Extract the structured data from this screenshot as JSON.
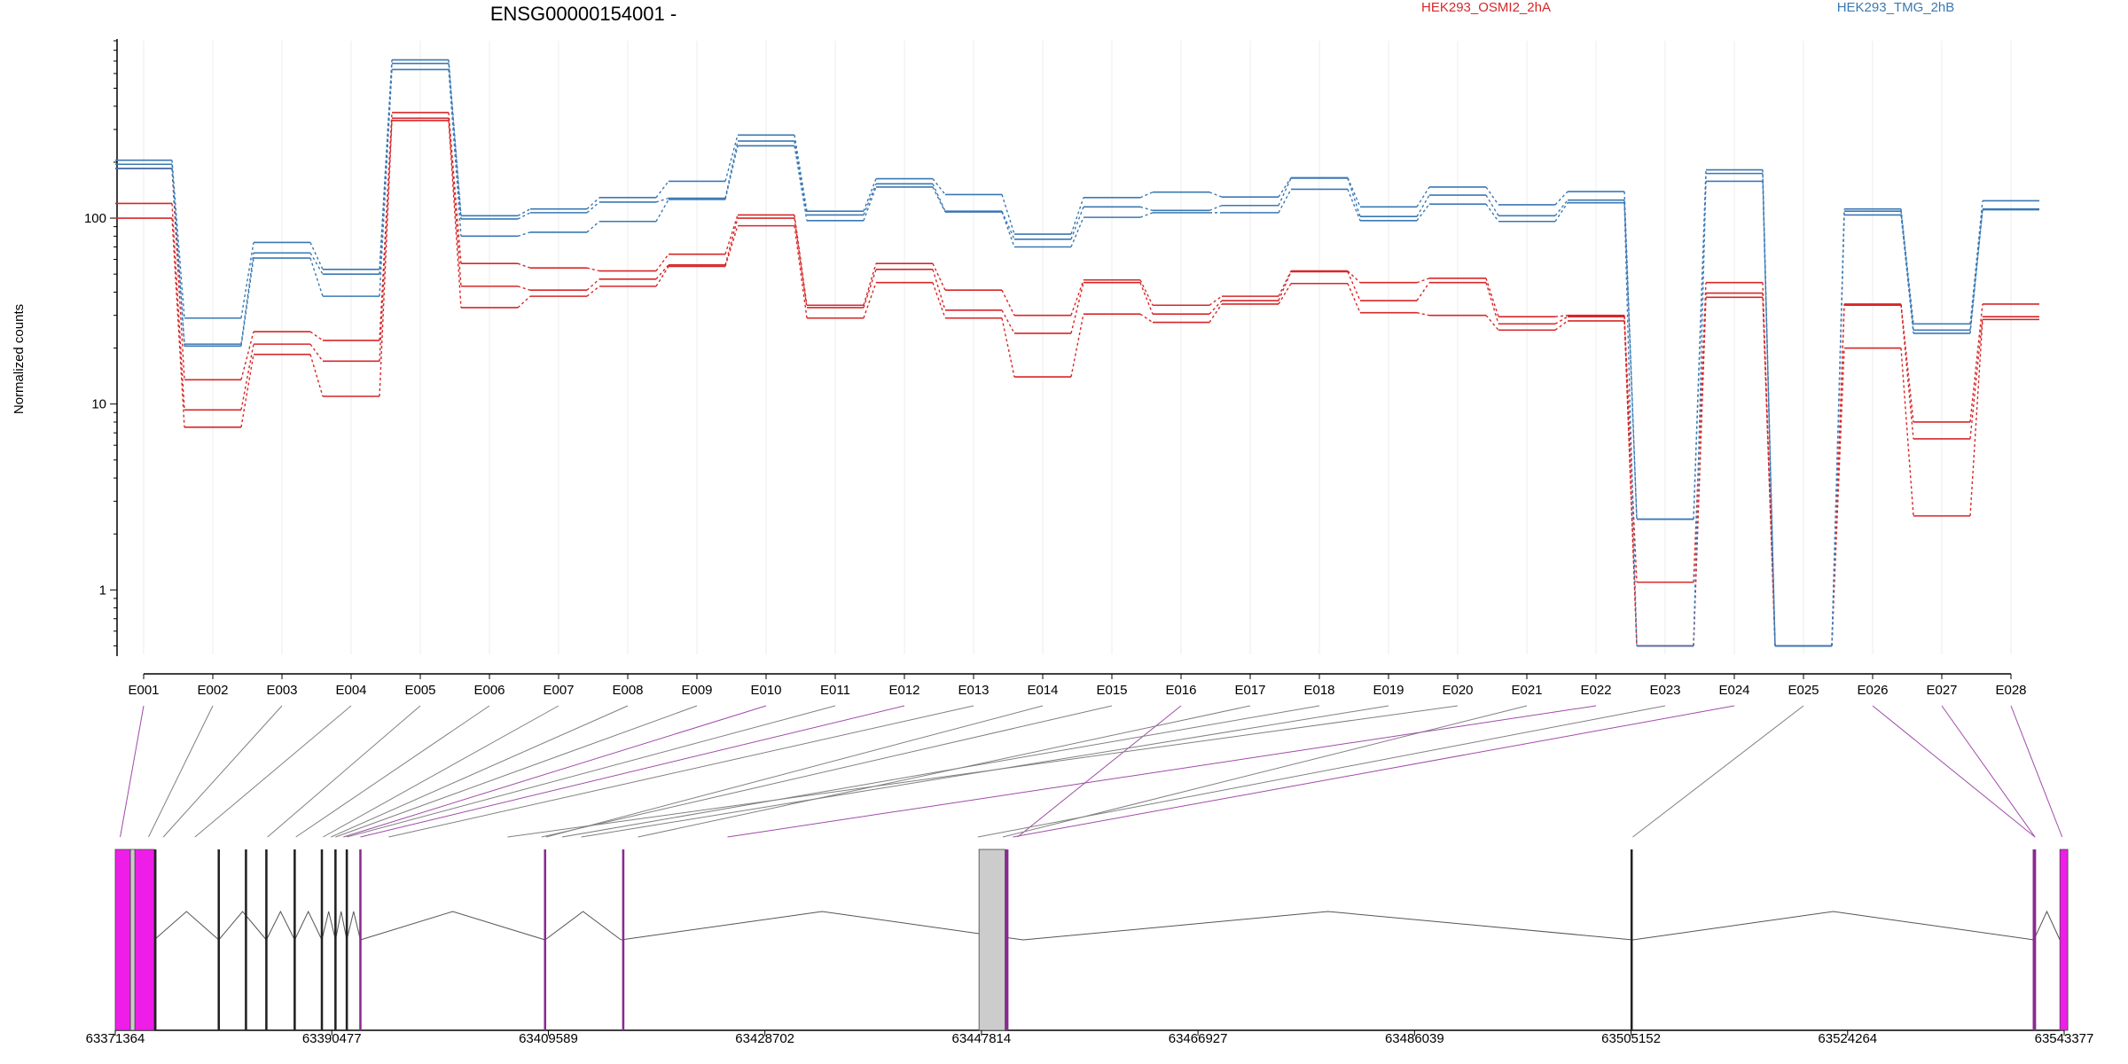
{
  "title": "ENSG00000154001 -",
  "legend": [
    {
      "label": "HEK293_OSMI2_2hA",
      "color": "#d62728"
    },
    {
      "label": "HEK293_TMG_2hB",
      "color": "#3a78b3"
    }
  ],
  "ylabel": "Normalized counts",
  "colors": {
    "red": "#d62728",
    "blue": "#3a78b3",
    "magenta": "#ee1ee8",
    "purple_line": "#a04aa8",
    "grey_line": "#808080",
    "grey_box": "#cccccc"
  },
  "chart_data": {
    "type": "line",
    "scale": "log",
    "ylim": [
      0.45,
      900
    ],
    "yticks": [
      1,
      10,
      100
    ],
    "ytick_labels": [
      "1",
      "10",
      "100"
    ],
    "categories": [
      "E001",
      "E002",
      "E003",
      "E004",
      "E005",
      "E006",
      "E007",
      "E008",
      "E009",
      "E010",
      "E011",
      "E012",
      "E013",
      "E014",
      "E015",
      "E016",
      "E017",
      "E018",
      "E019",
      "E020",
      "E021",
      "E022",
      "E023",
      "E024",
      "E025",
      "E026",
      "E027",
      "E028"
    ],
    "series": [
      {
        "group": "HEK293_OSMI2_2hA",
        "values": [
          185,
          13.5,
          24.5,
          22,
          370,
          57,
          54,
          52,
          64,
          104,
          34,
          57,
          41,
          30,
          46.5,
          34,
          38,
          52,
          45,
          47.5,
          29.5,
          30,
          1.1,
          45,
          0.5,
          34.5,
          8,
          34.5
        ]
      },
      {
        "group": "HEK293_OSMI2_2hA",
        "values": [
          120,
          9.3,
          21,
          17,
          345,
          43,
          41,
          47,
          56,
          100,
          33,
          53,
          32,
          24,
          45,
          30.5,
          36,
          51.5,
          36,
          45,
          27,
          29.5,
          0.5,
          39.5,
          0.5,
          34,
          6.5,
          29.5
        ]
      },
      {
        "group": "HEK293_OSMI2_2hA",
        "values": [
          100,
          7.5,
          18.5,
          11,
          335,
          33,
          38,
          43,
          55,
          91,
          29,
          45,
          29,
          14,
          30.5,
          27.5,
          34.5,
          44.5,
          31,
          30,
          25,
          28,
          0.5,
          37.5,
          0.5,
          20,
          2.5,
          28.5
        ]
      },
      {
        "group": "HEK293_TMG_2hB",
        "values": [
          205,
          29,
          74,
          53,
          710,
          103,
          112,
          129,
          158,
          280,
          109,
          163,
          134,
          82,
          129,
          138,
          130,
          165,
          115,
          147,
          118,
          139,
          2.4,
          182,
          0.5,
          112,
          27,
          124
        ]
      },
      {
        "group": "HEK293_TMG_2hB",
        "values": [
          195,
          21,
          65,
          50,
          680,
          99,
          107,
          122,
          128,
          260,
          104,
          153,
          109,
          77,
          115,
          110,
          117,
          164,
          102,
          133,
          103,
          125,
          2.4,
          174,
          0.5,
          109,
          25,
          112
        ]
      },
      {
        "group": "HEK293_TMG_2hB",
        "values": [
          185,
          20.5,
          61,
          38,
          630,
          80,
          84,
          96,
          126,
          245,
          97,
          147,
          108,
          70,
          101,
          107,
          107,
          143,
          97,
          119,
          96,
          121,
          0.5,
          158,
          0.5,
          104,
          24,
          111
        ]
      }
    ]
  },
  "gene_model": {
    "coordinate_ticks": [
      "63371364",
      "63390477",
      "63409589",
      "63428702",
      "63447814",
      "63466927",
      "63486039",
      "63505152",
      "63524264",
      "63543377"
    ],
    "range": [
      63371364,
      63543377
    ]
  }
}
